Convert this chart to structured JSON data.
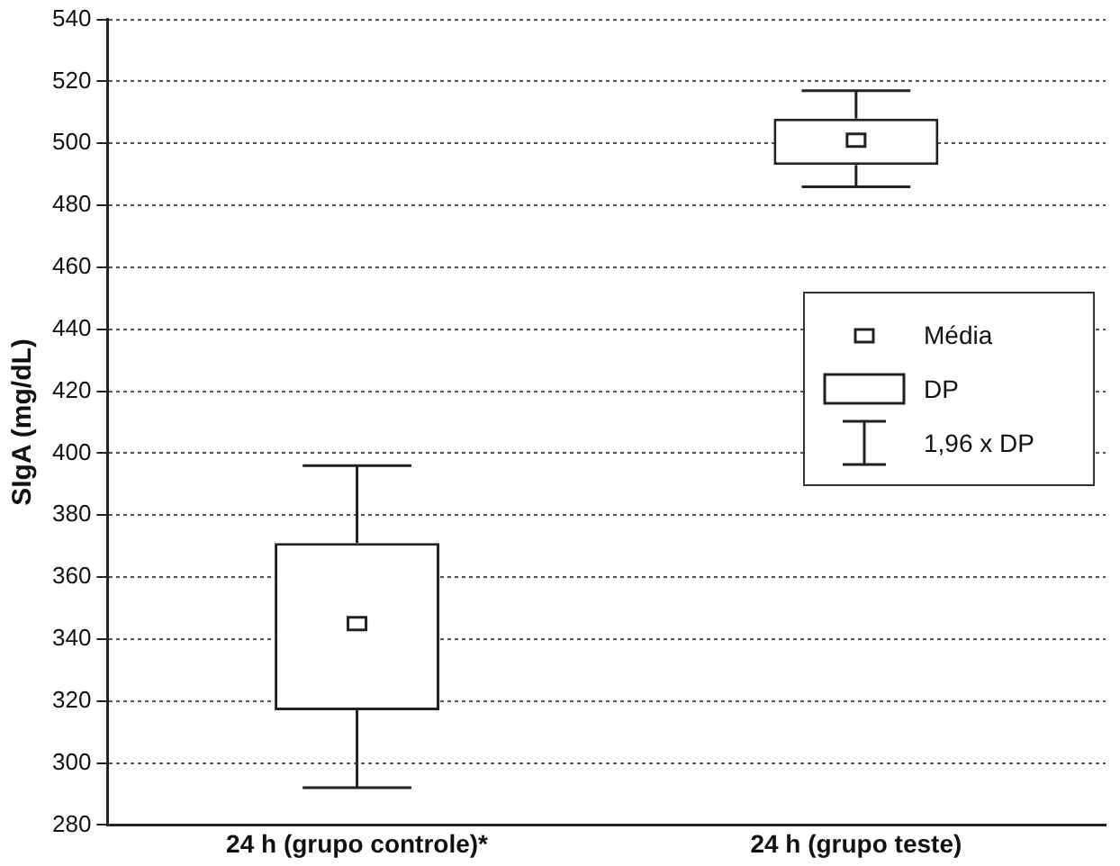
{
  "chart_data": {
    "type": "box",
    "ylabel": "SIgA (mg/dL)",
    "categories": [
      "24 h (grupo controle)*",
      "24 h (grupo teste)"
    ],
    "boxes": [
      {
        "low": 292,
        "q1": 317,
        "q3": 371,
        "high": 396,
        "mean": 345
      },
      {
        "low": 486,
        "q1": 493,
        "q3": 508,
        "high": 517,
        "mean": 501
      }
    ],
    "ylim": [
      280,
      540
    ],
    "yticks": [
      280,
      300,
      320,
      340,
      360,
      380,
      400,
      420,
      440,
      460,
      480,
      500,
      520,
      540
    ],
    "grid": "y",
    "annotations": [
      "Média",
      "DP",
      "1,96 x DP"
    ]
  }
}
